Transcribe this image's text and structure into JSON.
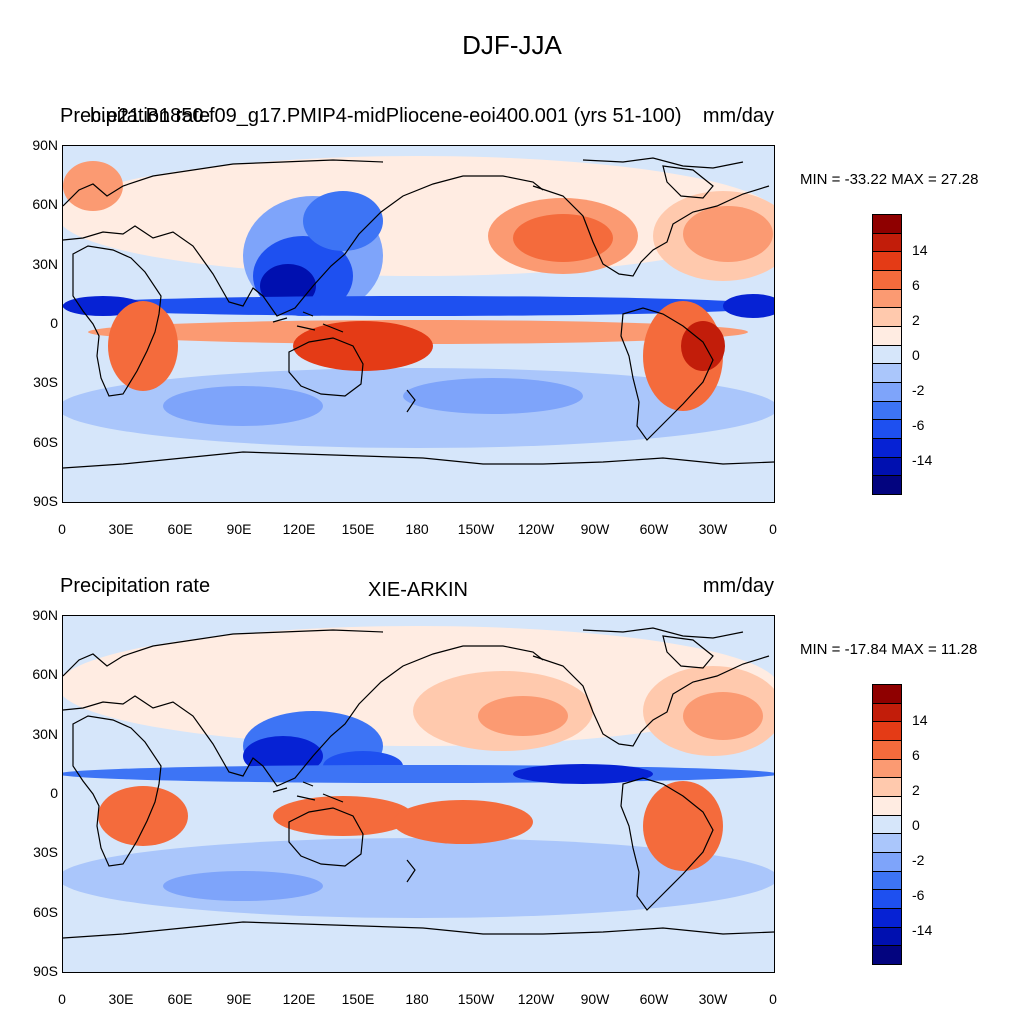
{
  "title": "DJF-JJA",
  "colors": {
    "levels": [
      "#03047f",
      "#0010b0",
      "#0622d4",
      "#1e50f0",
      "#3d74f5",
      "#7ea4fa",
      "#aac6fb",
      "#d6e6fa",
      "#ffece2",
      "#ffc9ad",
      "#fb9a72",
      "#f46b3c",
      "#e43b16",
      "#c21d0a",
      "#8f0000"
    ],
    "ocean_base": "#d6e6fa",
    "coast": "#000000"
  },
  "colorbar_labels": [
    "14",
    "6",
    "2",
    "0",
    "-2",
    "-6",
    "-14"
  ],
  "axes": {
    "lat_labels": [
      "90N",
      "60N",
      "30N",
      "0",
      "30S",
      "60S",
      "90S"
    ],
    "lon_labels": [
      "0",
      "30E",
      "60E",
      "90E",
      "120E",
      "150E",
      "180",
      "150W",
      "120W",
      "90W",
      "60W",
      "30W",
      "0"
    ]
  },
  "panels": [
    {
      "left": "Precipitation rate",
      "center": "b.e21.B1850.f09_g17.PMIP4-midPliocene-eoi400.001 (yrs 51-100)",
      "right": "mm/day",
      "stats": "MIN = -33.22 MAX =  27.28"
    },
    {
      "left": "Precipitation rate",
      "center": "XIE-ARKIN",
      "right": "mm/day",
      "stats": "MIN = -17.84 MAX =  11.28"
    }
  ],
  "chart_data": {
    "type": "heatmap",
    "title": "DJF-JJA",
    "variable": "Precipitation rate",
    "units": "mm/day",
    "colorbar_levels": [
      "14",
      "6",
      "2",
      "0",
      "-2",
      "-6",
      "-14"
    ],
    "panels": [
      {
        "name": "b.e21.B1850.f09_g17.PMIP4-midPliocene-eoi400.001 (yrs 51-100)",
        "min": -33.22,
        "max": 27.28
      },
      {
        "name": "XIE-ARKIN",
        "min": -17.84,
        "max": 11.28
      }
    ],
    "x_range": [
      "0",
      "0"
    ],
    "y_range": [
      "90S",
      "90N"
    ]
  }
}
